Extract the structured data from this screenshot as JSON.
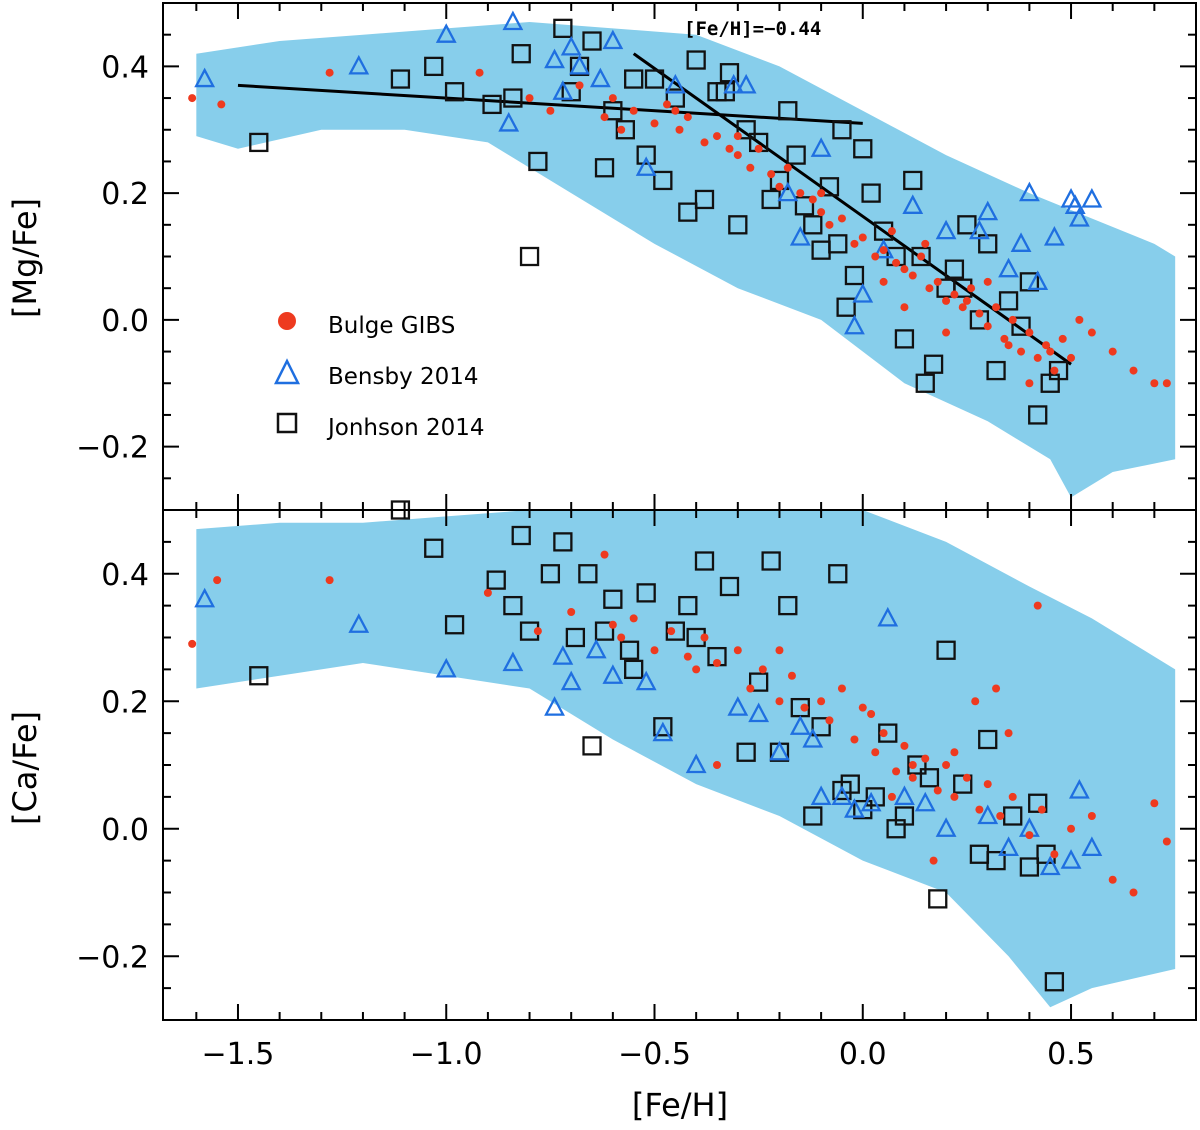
{
  "figure_title": "",
  "colors": {
    "band": "#87CEEB",
    "bulge": "#ee3a1f",
    "bensby": "#1f6fe0",
    "johnson": "#111111",
    "axis": "#000000"
  },
  "legend": {
    "bulge": "Bulge GIBS",
    "bensby": "Bensby 2014",
    "johnson": "Jonhson 2014"
  },
  "chart_data": [
    {
      "type": "scatter",
      "title": "",
      "xlabel": "[Fe/H]",
      "ylabel": "[Mg/Fe]",
      "xlim": [
        -1.68,
        0.8
      ],
      "ylim": [
        -0.3,
        0.5
      ],
      "xticks": [
        "−1.5",
        "−1.0",
        "−0.5",
        "0.0",
        "0.5"
      ],
      "yticks": [
        "−0.2",
        "0.0",
        "0.2",
        "0.4"
      ],
      "annotation": "[Fe/H]=−0.44",
      "legend_position": "lower-left",
      "band_upper": [
        [
          -1.6,
          0.42
        ],
        [
          -1.4,
          0.44
        ],
        [
          -1.2,
          0.45
        ],
        [
          -1.0,
          0.46
        ],
        [
          -0.8,
          0.47
        ],
        [
          -0.6,
          0.46
        ],
        [
          -0.4,
          0.45
        ],
        [
          -0.2,
          0.4
        ],
        [
          0.0,
          0.33
        ],
        [
          0.2,
          0.26
        ],
        [
          0.4,
          0.2
        ],
        [
          0.55,
          0.16
        ],
        [
          0.7,
          0.12
        ],
        [
          0.75,
          0.1
        ]
      ],
      "band_lower": [
        [
          -1.6,
          0.29
        ],
        [
          -1.5,
          0.27
        ],
        [
          -1.3,
          0.3
        ],
        [
          -1.1,
          0.3
        ],
        [
          -0.9,
          0.28
        ],
        [
          -0.7,
          0.2
        ],
        [
          -0.5,
          0.12
        ],
        [
          -0.3,
          0.05
        ],
        [
          -0.1,
          0.0
        ],
        [
          0.1,
          -0.1
        ],
        [
          0.3,
          -0.16
        ],
        [
          0.45,
          -0.22
        ],
        [
          0.5,
          -0.28
        ],
        [
          0.6,
          -0.24
        ],
        [
          0.75,
          -0.22
        ]
      ],
      "fit_lines": [
        {
          "name": "fit-low",
          "x": [
            -1.5,
            0.0
          ],
          "y": [
            0.37,
            0.31
          ]
        },
        {
          "name": "fit-high",
          "x": [
            -0.55,
            0.5
          ],
          "y": [
            0.42,
            -0.07
          ]
        }
      ],
      "series": [
        {
          "name": "Bulge GIBS",
          "marker": "dot",
          "x": [
            -1.61,
            -1.54,
            -1.28,
            -0.92,
            -0.8,
            -0.75,
            -0.68,
            -0.62,
            -0.58,
            -0.55,
            -0.5,
            -0.47,
            -0.44,
            -0.42,
            -0.38,
            -0.35,
            -0.32,
            -0.3,
            -0.27,
            -0.25,
            -0.22,
            -0.2,
            -0.18,
            -0.15,
            -0.12,
            -0.1,
            -0.08,
            -0.05,
            -0.02,
            0.0,
            0.03,
            0.05,
            0.08,
            0.1,
            0.12,
            0.14,
            0.16,
            0.18,
            0.2,
            0.22,
            0.24,
            0.26,
            0.28,
            0.3,
            0.32,
            0.34,
            0.36,
            0.38,
            0.4,
            0.42,
            0.44,
            0.46,
            0.48,
            0.5,
            0.52,
            0.55,
            0.6,
            0.65,
            0.7,
            0.73,
            -0.6,
            -0.45,
            -0.3,
            -0.1,
            0.07,
            0.15,
            0.25,
            0.35,
            0.45,
            0.1,
            0.2,
            0.3,
            0.05,
            0.4
          ],
          "y": [
            0.35,
            0.34,
            0.39,
            0.39,
            0.35,
            0.33,
            0.37,
            0.32,
            0.3,
            0.33,
            0.31,
            0.34,
            0.3,
            0.32,
            0.28,
            0.29,
            0.27,
            0.26,
            0.24,
            0.27,
            0.23,
            0.21,
            0.24,
            0.2,
            0.19,
            0.17,
            0.15,
            0.16,
            0.12,
            0.13,
            0.1,
            0.11,
            0.09,
            0.08,
            0.07,
            0.1,
            0.05,
            0.06,
            0.03,
            0.04,
            0.02,
            0.05,
            0.01,
            -0.01,
            0.02,
            -0.03,
            0.0,
            -0.05,
            -0.02,
            -0.06,
            -0.04,
            -0.08,
            -0.03,
            -0.06,
            0.0,
            -0.02,
            -0.05,
            -0.08,
            -0.1,
            -0.1,
            0.35,
            0.33,
            0.29,
            0.2,
            0.14,
            0.12,
            0.03,
            -0.04,
            -0.05,
            0.02,
            -0.02,
            0.06,
            0.06,
            -0.1
          ]
        },
        {
          "name": "Bensby 2014",
          "marker": "triangle",
          "x": [
            -1.58,
            -1.21,
            -1.0,
            -0.85,
            -0.84,
            -0.74,
            -0.72,
            -0.68,
            -0.7,
            -0.63,
            -0.6,
            -0.52,
            -0.45,
            -0.31,
            -0.28,
            -0.18,
            -0.15,
            -0.1,
            -0.02,
            0.0,
            0.05,
            0.12,
            0.2,
            0.28,
            0.3,
            0.35,
            0.38,
            0.4,
            0.42,
            0.46,
            0.5,
            0.52,
            0.55,
            0.51
          ],
          "y": [
            0.38,
            0.4,
            0.45,
            0.31,
            0.47,
            0.41,
            0.36,
            0.4,
            0.43,
            0.38,
            0.44,
            0.24,
            0.37,
            0.37,
            0.37,
            0.2,
            0.13,
            0.27,
            -0.01,
            0.04,
            0.11,
            0.18,
            0.14,
            0.14,
            0.17,
            0.08,
            0.12,
            0.2,
            0.06,
            0.13,
            0.19,
            0.16,
            0.19,
            0.18
          ]
        },
        {
          "name": "Jonhson 2014",
          "marker": "square",
          "x": [
            -1.45,
            -1.11,
            -1.03,
            -0.98,
            -0.89,
            -0.84,
            -0.82,
            -0.8,
            -0.78,
            -0.72,
            -0.7,
            -0.65,
            -0.62,
            -0.6,
            -0.57,
            -0.55,
            -0.52,
            -0.48,
            -0.45,
            -0.42,
            -0.4,
            -0.38,
            -0.35,
            -0.32,
            -0.3,
            -0.28,
            -0.25,
            -0.22,
            -0.2,
            -0.18,
            -0.16,
            -0.14,
            -0.12,
            -0.1,
            -0.08,
            -0.06,
            -0.04,
            -0.02,
            0.0,
            0.02,
            0.05,
            0.08,
            0.1,
            0.12,
            0.15,
            0.17,
            0.2,
            0.22,
            0.25,
            0.28,
            0.3,
            0.32,
            0.35,
            0.38,
            0.42,
            0.45,
            0.47,
            -0.68,
            -0.5,
            -0.33,
            -0.05,
            0.14,
            0.24,
            0.4
          ],
          "y": [
            0.28,
            0.38,
            0.4,
            0.36,
            0.34,
            0.35,
            0.42,
            0.1,
            0.25,
            0.46,
            0.36,
            0.44,
            0.24,
            0.33,
            0.3,
            0.38,
            0.26,
            0.22,
            0.35,
            0.17,
            0.41,
            0.19,
            0.36,
            0.39,
            0.15,
            0.3,
            0.28,
            0.19,
            0.22,
            0.33,
            0.26,
            0.18,
            0.15,
            0.11,
            0.21,
            0.12,
            0.02,
            0.07,
            0.27,
            0.2,
            0.14,
            0.1,
            -0.03,
            0.22,
            -0.1,
            -0.07,
            0.05,
            0.08,
            0.15,
            0.0,
            0.12,
            -0.08,
            0.03,
            -0.01,
            -0.15,
            -0.1,
            -0.08,
            0.4,
            0.38,
            0.36,
            0.3,
            0.1,
            0.05,
            0.06
          ]
        }
      ]
    },
    {
      "type": "scatter",
      "title": "",
      "xlabel": "[Fe/H]",
      "ylabel": "[Ca/Fe]",
      "xlim": [
        -1.68,
        0.8
      ],
      "ylim": [
        -0.3,
        0.5
      ],
      "xticks": [
        "−1.5",
        "−1.0",
        "−0.5",
        "0.0",
        "0.5"
      ],
      "yticks": [
        "−0.2",
        "0.0",
        "0.2",
        "0.4"
      ],
      "band_upper": [
        [
          -1.6,
          0.47
        ],
        [
          -1.4,
          0.48
        ],
        [
          -1.2,
          0.48
        ],
        [
          -1.0,
          0.49
        ],
        [
          -0.8,
          0.5
        ],
        [
          -0.6,
          0.5
        ],
        [
          -0.4,
          0.5
        ],
        [
          -0.2,
          0.5
        ],
        [
          0.0,
          0.5
        ],
        [
          0.2,
          0.45
        ],
        [
          0.4,
          0.38
        ],
        [
          0.55,
          0.33
        ],
        [
          0.7,
          0.27
        ],
        [
          0.75,
          0.25
        ]
      ],
      "band_lower": [
        [
          -1.6,
          0.22
        ],
        [
          -1.4,
          0.24
        ],
        [
          -1.2,
          0.26
        ],
        [
          -1.0,
          0.24
        ],
        [
          -0.8,
          0.22
        ],
        [
          -0.6,
          0.14
        ],
        [
          -0.4,
          0.07
        ],
        [
          -0.2,
          0.02
        ],
        [
          0.0,
          -0.05
        ],
        [
          0.2,
          -0.1
        ],
        [
          0.35,
          -0.2
        ],
        [
          0.45,
          -0.28
        ],
        [
          0.55,
          -0.25
        ],
        [
          0.75,
          -0.22
        ]
      ],
      "series": [
        {
          "name": "Bulge GIBS",
          "marker": "dot",
          "x": [
            -1.61,
            -1.55,
            -1.28,
            -0.9,
            -0.78,
            -0.7,
            -0.62,
            -0.58,
            -0.55,
            -0.5,
            -0.46,
            -0.42,
            -0.38,
            -0.35,
            -0.3,
            -0.27,
            -0.24,
            -0.2,
            -0.17,
            -0.14,
            -0.1,
            -0.08,
            -0.05,
            -0.02,
            0.0,
            0.03,
            0.05,
            0.08,
            0.1,
            0.12,
            0.15,
            0.18,
            0.2,
            0.22,
            0.25,
            0.28,
            0.3,
            0.33,
            0.36,
            0.4,
            0.43,
            0.46,
            0.5,
            0.55,
            0.6,
            0.65,
            0.7,
            0.73,
            -0.6,
            -0.4,
            -0.2,
            0.02,
            0.12,
            0.22,
            0.32,
            0.42,
            0.07,
            0.17,
            0.27,
            0.35,
            -0.35
          ],
          "y": [
            0.29,
            0.39,
            0.39,
            0.37,
            0.31,
            0.34,
            0.43,
            0.3,
            0.33,
            0.28,
            0.31,
            0.27,
            0.3,
            0.26,
            0.28,
            0.22,
            0.25,
            0.2,
            0.24,
            0.19,
            0.2,
            0.17,
            0.22,
            0.14,
            0.19,
            0.12,
            0.15,
            0.09,
            0.13,
            0.08,
            0.11,
            0.06,
            0.1,
            0.05,
            0.08,
            0.03,
            0.07,
            0.02,
            0.05,
            -0.01,
            0.03,
            -0.04,
            0.0,
            0.02,
            -0.08,
            -0.1,
            0.04,
            -0.02,
            0.32,
            0.25,
            0.28,
            0.18,
            0.1,
            0.12,
            0.22,
            0.35,
            0.05,
            -0.05,
            0.2,
            0.15,
            0.1
          ]
        },
        {
          "name": "Bensby 2014",
          "marker": "triangle",
          "x": [
            -1.58,
            -1.21,
            -1.0,
            -0.84,
            -0.74,
            -0.72,
            -0.7,
            -0.64,
            -0.6,
            -0.52,
            -0.48,
            -0.4,
            -0.3,
            -0.25,
            -0.2,
            -0.15,
            -0.12,
            -0.1,
            -0.05,
            -0.02,
            0.02,
            0.06,
            0.1,
            0.15,
            0.2,
            0.3,
            0.35,
            0.4,
            0.45,
            0.5,
            0.52,
            0.55
          ],
          "y": [
            0.36,
            0.32,
            0.25,
            0.26,
            0.19,
            0.27,
            0.23,
            0.28,
            0.24,
            0.23,
            0.15,
            0.1,
            0.19,
            0.18,
            0.12,
            0.16,
            0.14,
            0.05,
            0.05,
            0.03,
            0.04,
            0.33,
            0.05,
            0.04,
            0.0,
            0.02,
            -0.03,
            0.0,
            -0.06,
            -0.05,
            0.06,
            -0.03
          ]
        },
        {
          "name": "Jonhson 2014",
          "marker": "square",
          "x": [
            -1.45,
            -1.11,
            -1.03,
            -0.98,
            -0.88,
            -0.84,
            -0.82,
            -0.8,
            -0.75,
            -0.72,
            -0.69,
            -0.66,
            -0.62,
            -0.6,
            -0.56,
            -0.52,
            -0.48,
            -0.45,
            -0.42,
            -0.38,
            -0.35,
            -0.32,
            -0.28,
            -0.25,
            -0.22,
            -0.18,
            -0.15,
            -0.12,
            -0.1,
            -0.06,
            -0.03,
            0.0,
            0.03,
            0.06,
            0.1,
            0.13,
            0.16,
            0.2,
            0.24,
            0.28,
            0.32,
            0.36,
            0.4,
            0.44,
            0.46,
            -0.65,
            -0.55,
            -0.4,
            -0.2,
            -0.05,
            0.08,
            0.18,
            0.3,
            0.42
          ],
          "y": [
            0.24,
            0.5,
            0.44,
            0.32,
            0.39,
            0.35,
            0.46,
            0.31,
            0.4,
            0.45,
            0.3,
            0.4,
            0.31,
            0.36,
            0.28,
            0.37,
            0.16,
            0.31,
            0.35,
            0.42,
            0.27,
            0.38,
            0.12,
            0.23,
            0.42,
            0.35,
            0.19,
            0.02,
            0.16,
            0.4,
            0.07,
            0.03,
            0.05,
            0.15,
            0.02,
            0.1,
            0.08,
            0.28,
            0.07,
            -0.04,
            -0.05,
            0.02,
            -0.06,
            -0.04,
            -0.24,
            0.13,
            0.25,
            0.3,
            0.12,
            0.06,
            0.0,
            -0.11,
            0.14,
            0.04
          ]
        }
      ]
    }
  ]
}
